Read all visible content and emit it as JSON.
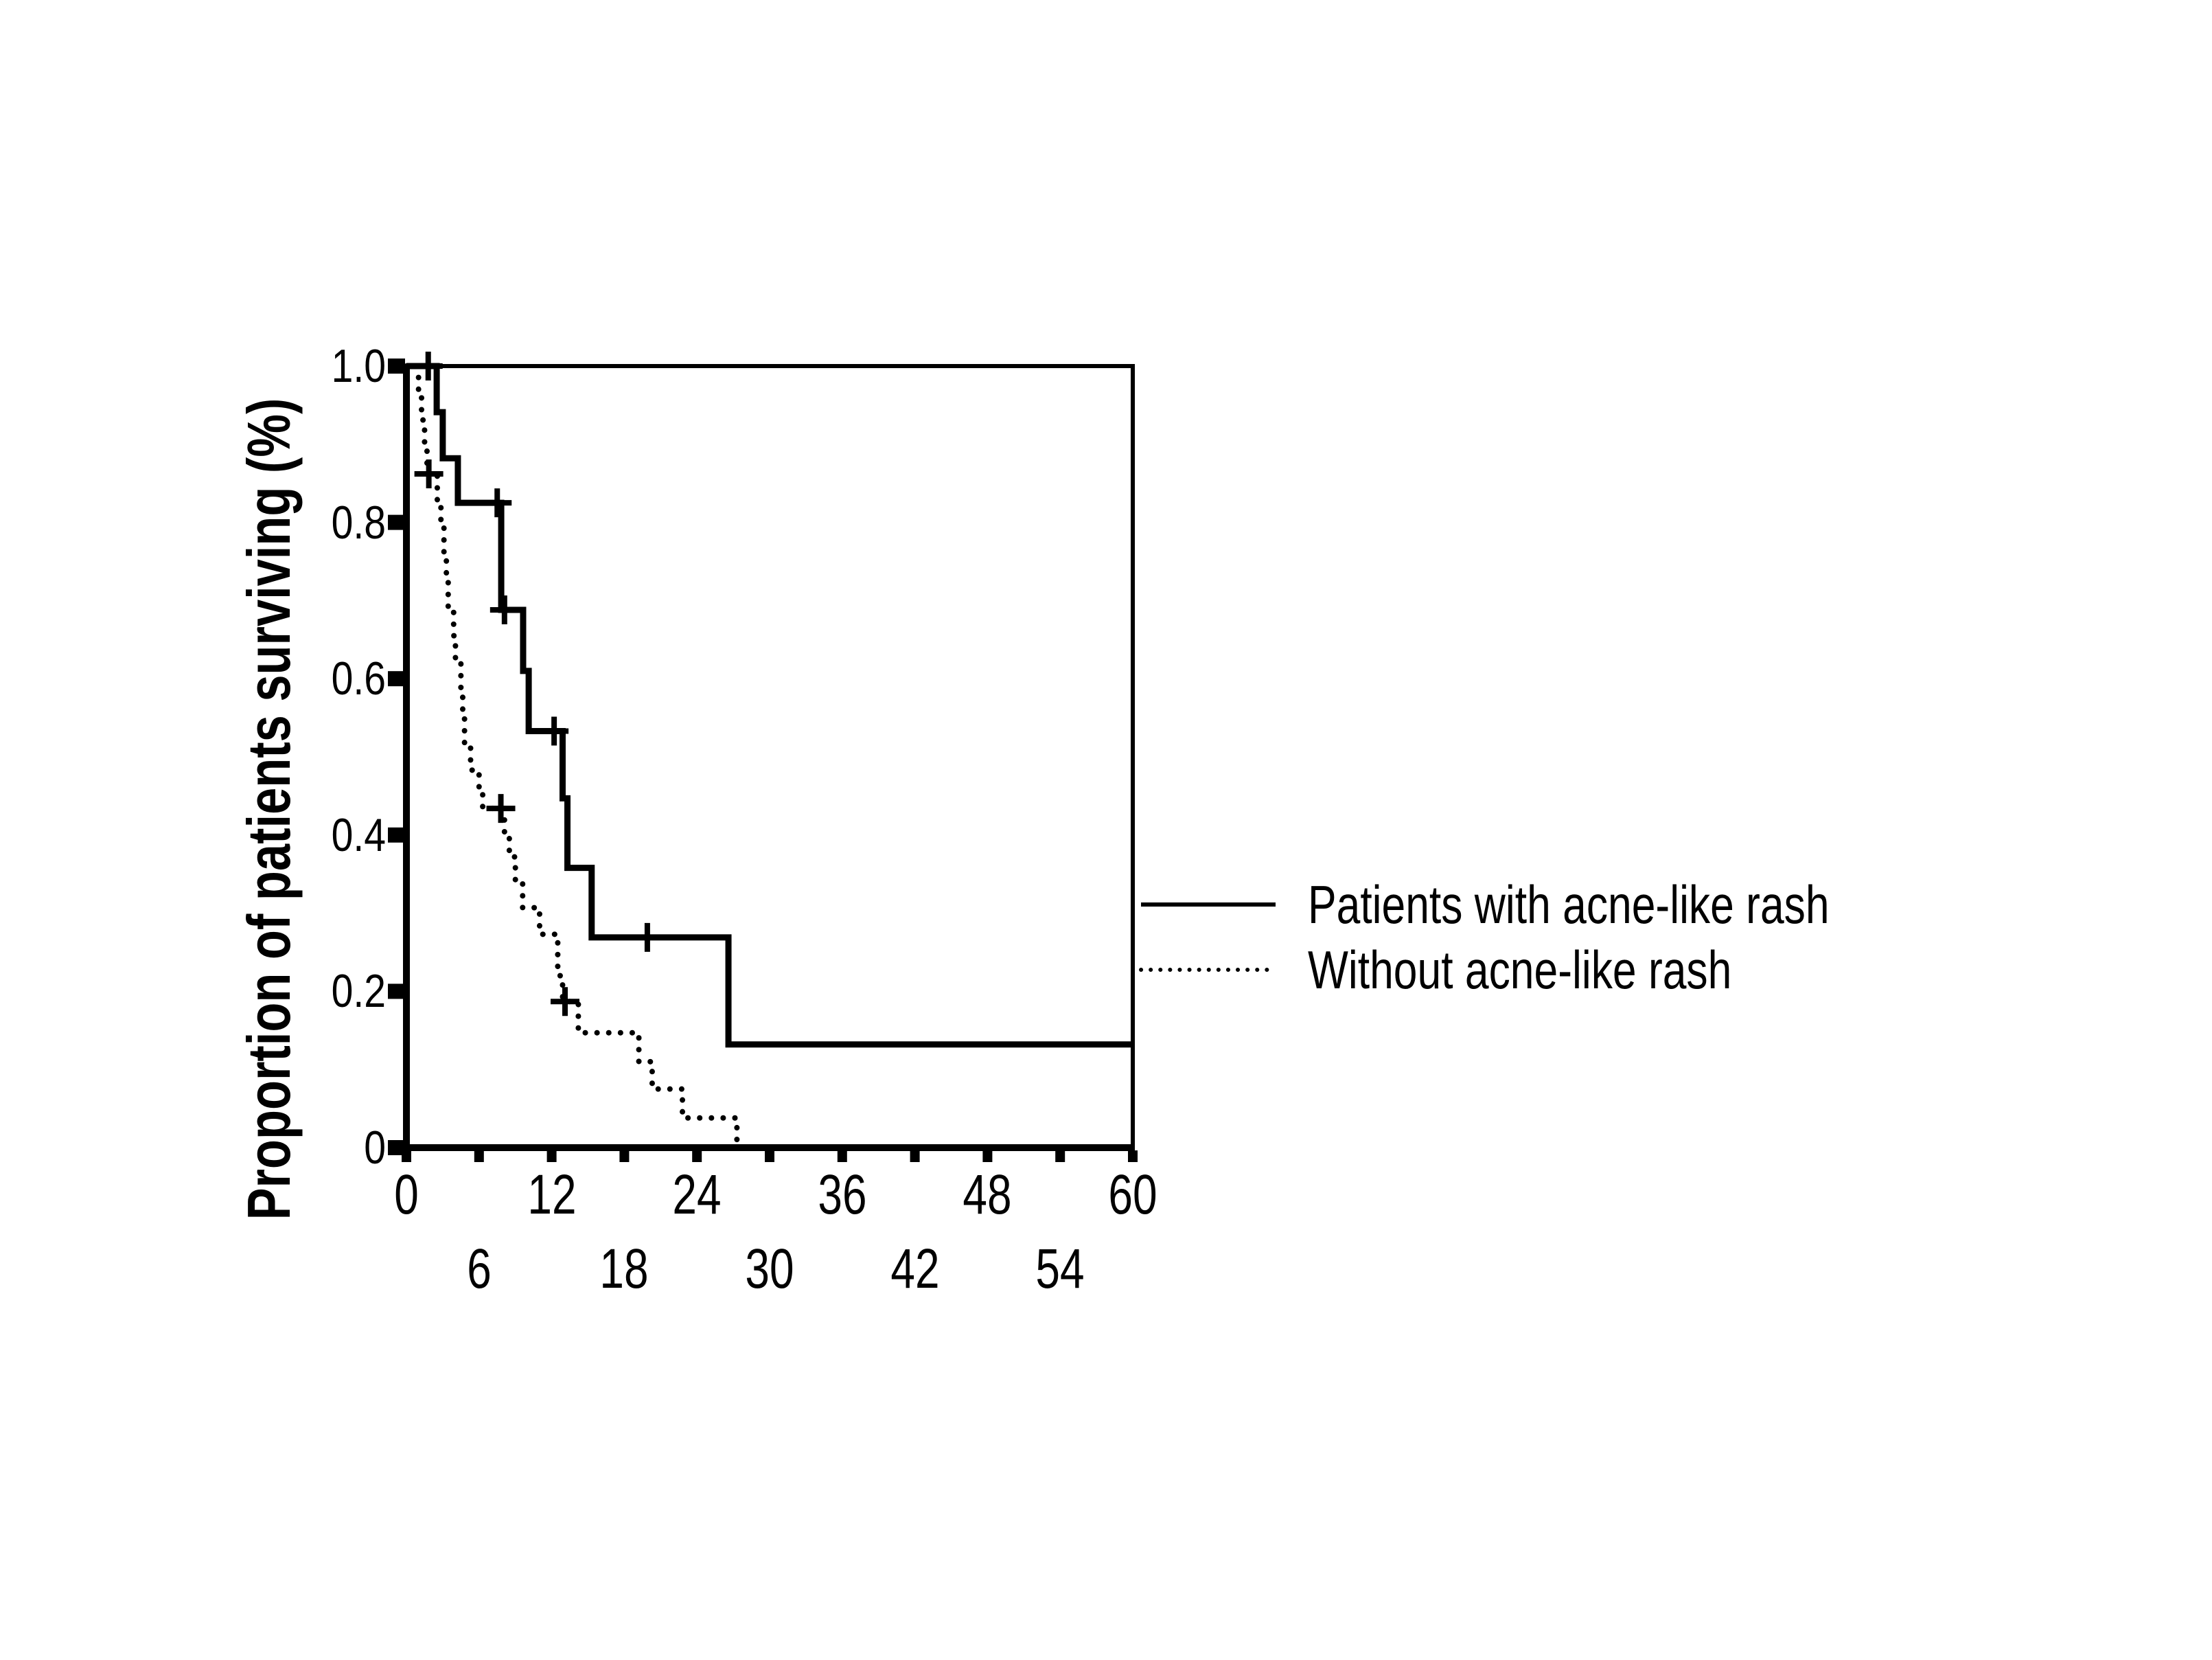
{
  "figure": {
    "background": "#ffffff",
    "ink": "#000000"
  },
  "y_axis": {
    "title": "Proportion of patients surviving (%)",
    "tick_labels": [
      "1.0",
      "0.8",
      "0.6",
      "0.4",
      "0.2",
      "0"
    ],
    "tick_values": [
      1.0,
      0.8,
      0.6,
      0.4,
      0.2,
      0
    ],
    "range": [
      0,
      1.0
    ]
  },
  "x_axis": {
    "tick_labels_row1": [
      "0",
      "12",
      "24",
      "36",
      "48",
      "60"
    ],
    "tick_values_row1": [
      0,
      12,
      24,
      36,
      48,
      60
    ],
    "tick_labels_row2": [
      "6",
      "18",
      "30",
      "42",
      "54"
    ],
    "tick_values_row2": [
      6,
      18,
      30,
      42,
      54
    ],
    "minor_tick_values": [
      0,
      6,
      12,
      18,
      24,
      30,
      36,
      42,
      48,
      54,
      60
    ],
    "range": [
      0,
      60
    ]
  },
  "legend": {
    "items": [
      {
        "label": "Patients with acne-like rash",
        "style": "solid"
      },
      {
        "label": "Without acne-like rash",
        "style": "dotted"
      }
    ]
  },
  "chart_data": {
    "type": "line",
    "subtype": "kaplan-meier-step",
    "title": "",
    "xlabel": "",
    "ylabel": "Proportion of patients surviving (%)",
    "xlim": [
      0,
      60
    ],
    "ylim": [
      0,
      1.0
    ],
    "grid": false,
    "legend_position": "right-middle",
    "series": [
      {
        "name": "Patients with acne-like rash",
        "line": "solid",
        "steps": [
          [
            0,
            1.0
          ],
          [
            2.5,
            0.941
          ],
          [
            3.0,
            0.882
          ],
          [
            4.25,
            0.825
          ],
          [
            7.83,
            0.688
          ],
          [
            9.64,
            0.61
          ],
          [
            10.1,
            0.533
          ],
          [
            12.9,
            0.447
          ],
          [
            13.3,
            0.358
          ],
          [
            15.3,
            0.269
          ],
          [
            26.6,
            0.132
          ]
        ],
        "end_x": 60,
        "censors": [
          [
            1.8,
            1.0
          ],
          [
            7.5,
            0.825
          ],
          [
            8.1,
            0.688
          ],
          [
            12.2,
            0.533
          ],
          [
            19.9,
            0.269
          ]
        ]
      },
      {
        "name": "Without acne-like rash",
        "line": "dotted",
        "steps": [
          [
            0,
            1.0
          ],
          [
            1.0,
            0.966
          ],
          [
            1.25,
            0.931
          ],
          [
            1.5,
            0.897
          ],
          [
            1.7,
            0.862
          ],
          [
            2.55,
            0.828
          ],
          [
            2.85,
            0.793
          ],
          [
            3.1,
            0.759
          ],
          [
            3.3,
            0.724
          ],
          [
            3.45,
            0.69
          ],
          [
            3.9,
            0.655
          ],
          [
            4.05,
            0.621
          ],
          [
            4.5,
            0.586
          ],
          [
            4.65,
            0.552
          ],
          [
            4.8,
            0.517
          ],
          [
            5.3,
            0.483
          ],
          [
            6.0,
            0.46
          ],
          [
            6.3,
            0.434
          ],
          [
            8.1,
            0.4
          ],
          [
            8.5,
            0.372
          ],
          [
            9.0,
            0.339
          ],
          [
            9.6,
            0.307
          ],
          [
            11.0,
            0.273
          ],
          [
            12.5,
            0.22
          ],
          [
            12.9,
            0.187
          ],
          [
            14.2,
            0.147
          ],
          [
            19.2,
            0.11
          ],
          [
            20.3,
            0.075
          ],
          [
            22.8,
            0.038
          ],
          [
            27.3,
            0.0
          ]
        ],
        "end_x": 27.3,
        "censors": [
          [
            1.85,
            0.862
          ],
          [
            7.8,
            0.434
          ],
          [
            13.1,
            0.187
          ]
        ]
      }
    ]
  }
}
